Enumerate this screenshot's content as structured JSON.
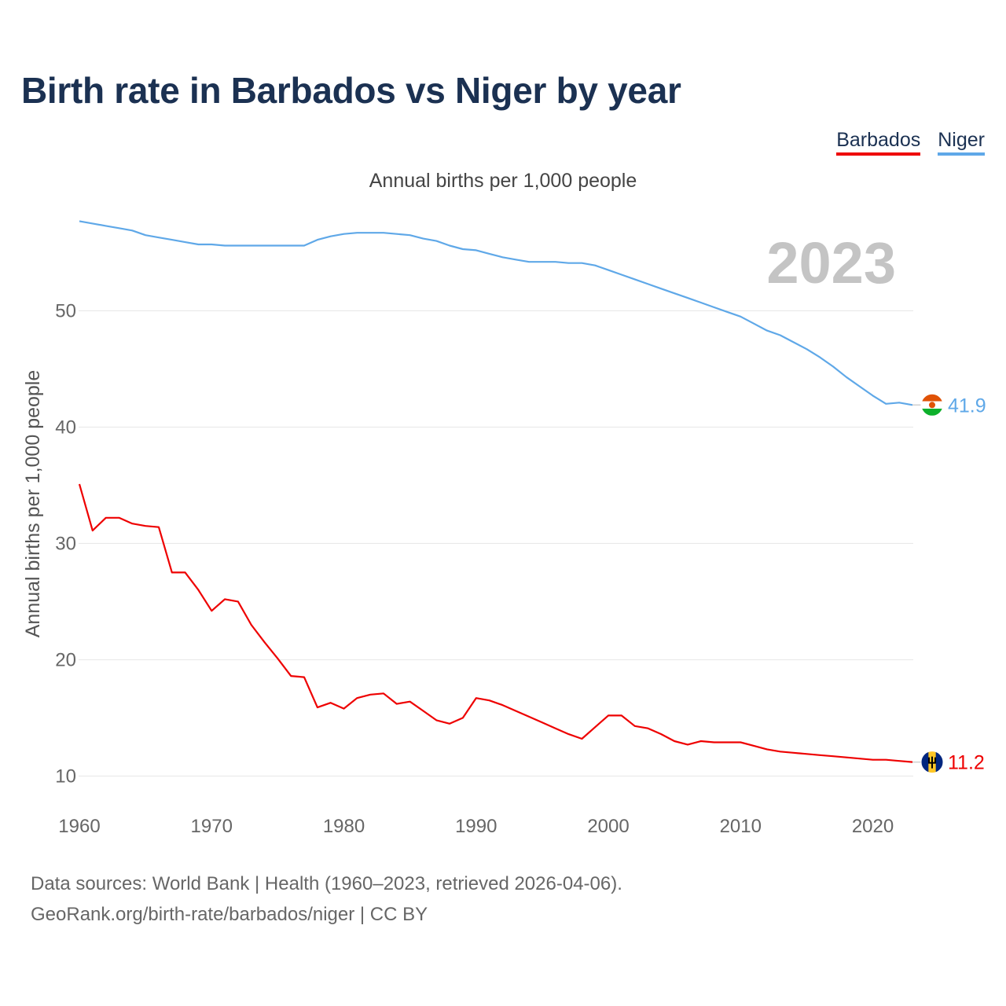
{
  "title": "Birth rate in Barbados vs Niger by year",
  "subtitle": "Annual births per 1,000 people",
  "legend": [
    {
      "label": "Barbados",
      "color": "#ee0000"
    },
    {
      "label": "Niger",
      "color": "#5fa8e8"
    }
  ],
  "year_display": "2023",
  "footer": {
    "line1": "Data sources: World Bank | Health (1960–2023, retrieved 2026-04-06).",
    "line2": "GeoRank.org/birth-rate/barbados/niger | CC BY"
  },
  "chart_data": {
    "type": "line",
    "title": "Birth rate in Barbados vs Niger by year",
    "ylabel": "Annual births per 1,000 people",
    "xlabel": "",
    "xlim": [
      1960,
      2023
    ],
    "ylim": [
      8,
      58
    ],
    "xticks": [
      1960,
      1970,
      1980,
      1990,
      2000,
      2010,
      2020
    ],
    "yticks": [
      10,
      20,
      30,
      40,
      50
    ],
    "grid": true,
    "legend_position": "top-right",
    "x": [
      1960,
      1961,
      1962,
      1963,
      1964,
      1965,
      1966,
      1967,
      1968,
      1969,
      1970,
      1971,
      1972,
      1973,
      1974,
      1975,
      1976,
      1977,
      1978,
      1979,
      1980,
      1981,
      1982,
      1983,
      1984,
      1985,
      1986,
      1987,
      1988,
      1989,
      1990,
      1991,
      1992,
      1993,
      1994,
      1995,
      1996,
      1997,
      1998,
      1999,
      2000,
      2001,
      2002,
      2003,
      2004,
      2005,
      2006,
      2007,
      2008,
      2009,
      2010,
      2011,
      2012,
      2013,
      2014,
      2015,
      2016,
      2017,
      2018,
      2019,
      2020,
      2021,
      2022,
      2023
    ],
    "series": [
      {
        "name": "Barbados",
        "color": "#ee0000",
        "end_label": "11.2",
        "values": [
          35.1,
          31.1,
          32.2,
          32.2,
          31.7,
          31.5,
          31.4,
          27.5,
          27.5,
          26.0,
          24.2,
          25.2,
          25.0,
          23.0,
          21.5,
          20.1,
          18.6,
          18.5,
          15.9,
          16.3,
          15.8,
          16.7,
          17.0,
          17.1,
          16.2,
          16.4,
          15.6,
          14.8,
          14.5,
          15.0,
          16.7,
          16.5,
          16.1,
          15.6,
          15.1,
          14.6,
          14.1,
          13.6,
          13.2,
          14.2,
          15.2,
          15.2,
          14.3,
          14.1,
          13.6,
          13.0,
          12.7,
          13.0,
          12.9,
          12.9,
          12.9,
          12.6,
          12.3,
          12.1,
          12.0,
          11.9,
          11.8,
          11.7,
          11.6,
          11.5,
          11.4,
          11.4,
          11.3,
          11.2
        ]
      },
      {
        "name": "Niger",
        "color": "#5fa8e8",
        "end_label": "41.9",
        "values": [
          57.7,
          57.5,
          57.3,
          57.1,
          56.9,
          56.5,
          56.3,
          56.1,
          55.9,
          55.7,
          55.7,
          55.6,
          55.6,
          55.6,
          55.6,
          55.6,
          55.6,
          55.6,
          56.1,
          56.4,
          56.6,
          56.7,
          56.7,
          56.7,
          56.6,
          56.5,
          56.2,
          56.0,
          55.6,
          55.3,
          55.2,
          54.9,
          54.6,
          54.4,
          54.2,
          54.2,
          54.2,
          54.1,
          54.1,
          53.9,
          53.5,
          53.1,
          52.7,
          52.3,
          51.9,
          51.5,
          51.1,
          50.7,
          50.3,
          49.9,
          49.5,
          48.9,
          48.3,
          47.9,
          47.3,
          46.7,
          46.0,
          45.2,
          44.3,
          43.5,
          42.7,
          42.0,
          42.1,
          41.9
        ]
      }
    ]
  }
}
